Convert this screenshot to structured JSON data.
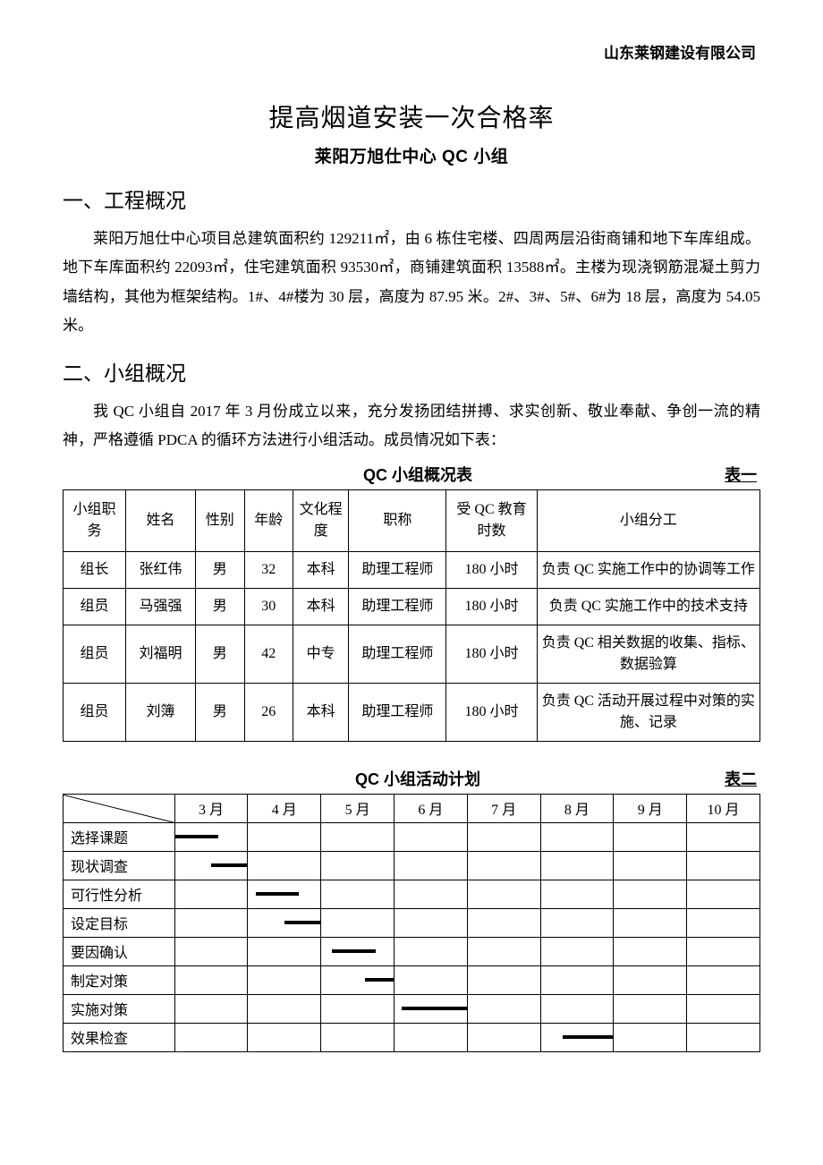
{
  "header": {
    "company": "山东莱钢建设有限公司"
  },
  "title": {
    "main": "提高烟道安装一次合格率",
    "sub": "莱阳万旭仕中心 QC 小组"
  },
  "section1": {
    "heading": "一、工程概况",
    "body": "莱阳万旭仕中心项目总建筑面积约 129211㎡，由 6 栋住宅楼、四周两层沿街商铺和地下车库组成。地下车库面积约 22093㎡，住宅建筑面积 93530㎡，商铺建筑面积 13588㎡。主楼为现浇钢筋混凝土剪力墙结构，其他为框架结构。1#、4#楼为 30 层，高度为 87.95 米。2#、3#、5#、6#为 18 层，高度为 54.05 米。"
  },
  "section2": {
    "heading": "二、小组概况",
    "body": "我 QC 小组自 2017 年 3 月份成立以来，充分发扬团结拼搏、求实创新、敬业奉献、争创一流的精神，严格遵循 PDCA 的循环方法进行小组活动。成员情况如下表："
  },
  "table1": {
    "title": "QC 小组概况表",
    "label": "表一",
    "columns": [
      "小组职务",
      "姓名",
      "性别",
      "年龄",
      "文化程度",
      "职称",
      "受 QC 教育时数",
      "小组分工"
    ],
    "col_widths_pct": [
      9,
      10,
      7,
      7,
      8,
      14,
      13,
      32
    ],
    "rows": [
      [
        "组长",
        "张红伟",
        "男",
        "32",
        "本科",
        "助理工程师",
        "180 小时",
        "负责 QC 实施工作中的协调等工作"
      ],
      [
        "组员",
        "马强强",
        "男",
        "30",
        "本科",
        "助理工程师",
        "180 小时",
        "负责 QC 实施工作中的技术支持"
      ],
      [
        "组员",
        "刘福明",
        "男",
        "42",
        "中专",
        "助理工程师",
        "180 小时",
        "负责 QC 相关数据的收集、指标、数据验算"
      ],
      [
        "组员",
        "刘簿",
        "男",
        "26",
        "本科",
        "助理工程师",
        "180 小时",
        "负责 QC 活动开展过程中对策的实施、记录"
      ]
    ]
  },
  "table2": {
    "title": "QC 小组活动计划",
    "label": "表二",
    "months": [
      "3 月",
      "4 月",
      "5 月",
      "6 月",
      "7 月",
      "8 月",
      "9 月",
      "10 月"
    ],
    "first_col_width_pct": 16,
    "month_col_width_pct": 10.5,
    "rows": [
      {
        "label": "选择课题",
        "bars": [
          {
            "col": 0,
            "start": 0,
            "width": 60
          }
        ]
      },
      {
        "label": "现状调查",
        "bars": [
          {
            "col": 0,
            "start": 50,
            "width": 60
          }
        ]
      },
      {
        "label": "可行性分析",
        "bars": [
          {
            "col": 1,
            "start": 10,
            "width": 60
          }
        ]
      },
      {
        "label": "设定目标",
        "bars": [
          {
            "col": 1,
            "start": 50,
            "width": 60
          }
        ]
      },
      {
        "label": "要因确认",
        "bars": [
          {
            "col": 2,
            "start": 15,
            "width": 60
          }
        ]
      },
      {
        "label": "制定对策",
        "bars": [
          {
            "col": 2,
            "start": 60,
            "width": 55
          }
        ]
      },
      {
        "label": "实施对策",
        "bars": [
          {
            "col": 3,
            "start": 10,
            "width": 185
          }
        ]
      },
      {
        "label": "效果检查",
        "bars": [
          {
            "col": 5,
            "start": 30,
            "width": 75
          }
        ]
      }
    ],
    "bar_color": "#000000"
  }
}
